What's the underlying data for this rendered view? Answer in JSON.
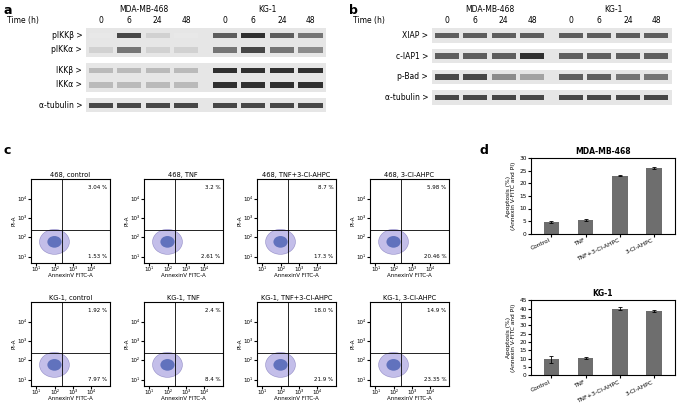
{
  "panels": {
    "a": {
      "label": "a",
      "time_label": "Time (h)",
      "groups": [
        {
          "name": "MDA-MB-468",
          "times": [
            0,
            6,
            24,
            48
          ]
        },
        {
          "name": "KG-1",
          "times": [
            0,
            6,
            24,
            48
          ]
        }
      ],
      "blots": [
        {
          "bands": [
            {
              "label": "pIKKβ >",
              "intensity": [
                0.1,
                0.8,
                0.2,
                0.1,
                0.7,
                0.9,
                0.7,
                0.6
              ]
            },
            {
              "label": "pIKKα >",
              "intensity": [
                0.2,
                0.6,
                0.2,
                0.2,
                0.6,
                0.8,
                0.6,
                0.5
              ]
            }
          ]
        },
        {
          "bands": [
            {
              "label": "IKKβ >",
              "intensity": [
                0.3,
                0.3,
                0.3,
                0.3,
                0.9,
                0.9,
                0.9,
                0.9
              ]
            },
            {
              "label": "IKKα >",
              "intensity": [
                0.3,
                0.3,
                0.3,
                0.3,
                0.9,
                0.9,
                0.9,
                0.9
              ]
            }
          ]
        },
        {
          "bands": [
            {
              "label": "α-tubulin >",
              "intensity": [
                0.8,
                0.8,
                0.8,
                0.8,
                0.8,
                0.8,
                0.8,
                0.8
              ]
            }
          ]
        }
      ]
    },
    "b": {
      "label": "b",
      "time_label": "Time (h)",
      "groups": [
        {
          "name": "MDA-MB-468",
          "times": [
            0,
            6,
            24,
            48
          ]
        },
        {
          "name": "KG-1",
          "times": [
            0,
            6,
            24,
            48
          ]
        }
      ],
      "blots": [
        {
          "bands": [
            {
              "label": "XIAP >",
              "intensity": [
                0.7,
                0.7,
                0.7,
                0.7,
                0.7,
                0.7,
                0.7,
                0.7
              ]
            }
          ]
        },
        {
          "bands": [
            {
              "label": "c-IAP1 >",
              "intensity": [
                0.7,
                0.7,
                0.7,
                0.9,
                0.7,
                0.7,
                0.7,
                0.7
              ]
            }
          ]
        },
        {
          "bands": [
            {
              "label": "p-Bad >",
              "intensity": [
                0.8,
                0.8,
                0.5,
                0.4,
                0.7,
                0.7,
                0.6,
                0.6
              ]
            }
          ]
        },
        {
          "bands": [
            {
              "label": "α-tubulin >",
              "intensity": [
                0.8,
                0.8,
                0.8,
                0.8,
                0.8,
                0.8,
                0.8,
                0.8
              ]
            }
          ]
        }
      ]
    },
    "c": {
      "label": "c",
      "xlabel": "AnnexinV FITC-A",
      "ylabel": "PI-A",
      "log": true,
      "xlim": [
        5,
        100000
      ],
      "ylim": [
        5,
        100000
      ],
      "xticks": [
        {
          "value": 10,
          "label": "10¹"
        },
        {
          "value": 100,
          "label": "10²"
        },
        {
          "value": 1000,
          "label": "10³"
        },
        {
          "value": 10000,
          "label": "10⁴"
        }
      ],
      "yticks": [
        {
          "value": 10,
          "label": "10¹"
        },
        {
          "value": 100,
          "label": "10²"
        },
        {
          "value": 1000,
          "label": "10³"
        },
        {
          "value": 10000,
          "label": "10⁴"
        }
      ],
      "quadrant_gate": {
        "x": 250,
        "y": 250
      },
      "plots": [
        {
          "title": "468, control",
          "upper_right": {
            "value": 3.04,
            "label": "3.04 %"
          },
          "lower_right": {
            "value": 1.53,
            "label": "1.53 %"
          }
        },
        {
          "title": "468, TNF",
          "upper_right": {
            "value": 3.2,
            "label": "3.2 %"
          },
          "lower_right": {
            "value": 2.61,
            "label": "2.61 %"
          }
        },
        {
          "title": "468, TNF+3-Cl-AHPC",
          "upper_right": {
            "value": 8.7,
            "label": "8.7 %"
          },
          "lower_right": {
            "value": 17.3,
            "label": "17.3 %"
          }
        },
        {
          "title": "468, 3-Cl-AHPC",
          "upper_right": {
            "value": 5.98,
            "label": "5.98 %"
          },
          "lower_right": {
            "value": 20.46,
            "label": "20.46 %"
          }
        },
        {
          "title": "KG-1, control",
          "upper_right": {
            "value": 1.92,
            "label": "1.92 %"
          },
          "lower_right": {
            "value": 7.97,
            "label": "7.97 %"
          }
        },
        {
          "title": "KG-1, TNF",
          "upper_right": {
            "value": 2.4,
            "label": "2.4 %"
          },
          "lower_right": {
            "value": 8.4,
            "label": "8.4 %"
          }
        },
        {
          "title": "KG-1, TNF+3-Cl-AHPC",
          "upper_right": {
            "value": 18.0,
            "label": "18.0 %"
          },
          "lower_right": {
            "value": 21.9,
            "label": "21.9 %"
          }
        },
        {
          "title": "KG-1, 3-Cl-AHPC",
          "upper_right": {
            "value": 14.9,
            "label": "14.9 %"
          },
          "lower_right": {
            "value": 23.35,
            "label": "23.35 %"
          }
        }
      ]
    },
    "d": {
      "label": "d"
    }
  },
  "chart_data": [
    {
      "type": "bar",
      "title": "MDA-MB-468",
      "y_label": "Apoptosis (%)\n(Annexin V-FITC and PI)",
      "categories": [
        "Control",
        "TNF",
        "TNF+3-Cl-AHPC",
        "3-Cl-AHPC"
      ],
      "values": [
        4.8,
        5.5,
        23,
        26.2
      ],
      "errors": [
        0.4,
        0.3,
        0.2,
        0.4
      ],
      "color": "#6e6e6e",
      "ylim": [
        0,
        30
      ],
      "yticks": [
        0,
        5,
        10,
        15,
        20,
        25,
        30
      ]
    },
    {
      "type": "bar",
      "title": "KG-1",
      "y_label": "Apoptosis (%)\n(Annexin V-FITC and PI)",
      "categories": [
        "Control",
        "TNF",
        "TNF+3-Cl-AHPC",
        "3-Cl-AHPC"
      ],
      "values": [
        9.5,
        10.5,
        40,
        38.5
      ],
      "errors": [
        2,
        0.6,
        0.8,
        0.4
      ],
      "color": "#6e6e6e",
      "ylim": [
        0,
        45
      ],
      "yticks": [
        0,
        5,
        10,
        15,
        20,
        25,
        30,
        35,
        40,
        45
      ]
    }
  ]
}
